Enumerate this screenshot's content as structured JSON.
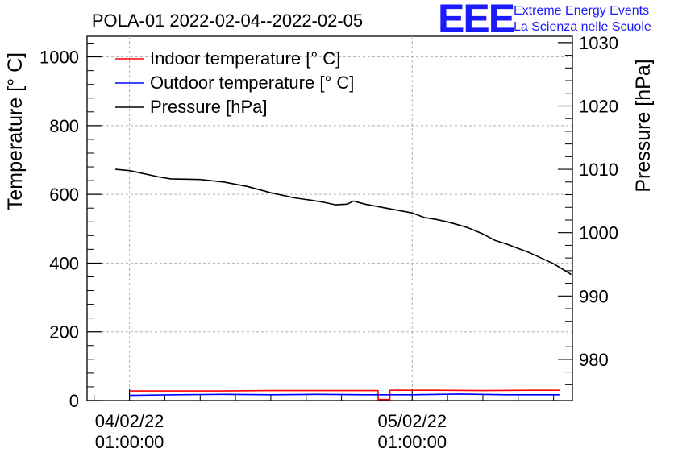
{
  "chart_data": {
    "type": "line",
    "title": "POLA-01 2022-02-04--2022-02-05",
    "ylabel_left": "Temperature [° C]",
    "ylabel_right": "Pressure [hPa]",
    "ylim_left": [
      0,
      1060
    ],
    "ylim_right": [
      973.5,
      1031
    ],
    "yticks_left": [
      0,
      200,
      400,
      600,
      800,
      1000
    ],
    "yticks_right": [
      980,
      990,
      1000,
      1010,
      1020,
      1030
    ],
    "x_hours_range": [
      -3.6,
      37.6
    ],
    "xticks": [
      {
        "hour": 0,
        "date": "04/02/22",
        "time": "01:00:00"
      },
      {
        "hour": 24,
        "date": "05/02/22",
        "time": "01:00:00"
      }
    ],
    "grid": true,
    "legend": {
      "placement": "top-left",
      "entries": [
        {
          "label": "Indoor temperature [° C]",
          "color": "#ff0000"
        },
        {
          "label": "Outdoor temperature [° C]",
          "color": "#0000ff"
        },
        {
          "label": "Pressure [hPa]",
          "color": "#000000"
        }
      ]
    },
    "series": [
      {
        "name": "Indoor temperature [° C]",
        "axis": "left",
        "color": "#ff0000",
        "x": [
          0,
          4,
          8,
          12,
          16,
          20,
          21.1,
          21.11,
          22.1,
          22.11,
          26,
          30,
          34,
          36.5
        ],
        "y": [
          28,
          28,
          28,
          29,
          29,
          29,
          29,
          3,
          3,
          30,
          30,
          29,
          30,
          30
        ]
      },
      {
        "name": "Outdoor temperature [° C]",
        "axis": "left",
        "color": "#0000ff",
        "x": [
          0,
          4,
          8,
          12,
          16,
          20,
          24,
          28,
          32,
          36.5
        ],
        "y": [
          15,
          17,
          18,
          17,
          18,
          17,
          17,
          19,
          17,
          17
        ]
      },
      {
        "name": "Pressure [hPa]",
        "axis": "right",
        "color": "#000000",
        "x": [
          -1.2,
          0,
          0.5,
          1.5,
          2.5,
          3.5,
          6,
          8,
          10,
          12,
          14,
          15.5,
          16.5,
          17.5,
          18.5,
          19,
          20,
          22,
          24,
          25,
          26,
          27,
          28,
          28.7,
          30,
          31,
          32,
          34,
          36,
          37.5
        ],
        "y": [
          1010.0,
          1009.8,
          1009.6,
          1009.2,
          1008.8,
          1008.5,
          1008.4,
          1008.0,
          1007.3,
          1006.3,
          1005.5,
          1005.1,
          1004.8,
          1004.4,
          1004.5,
          1005.0,
          1004.5,
          1003.8,
          1003.1,
          1002.4,
          1002.1,
          1001.7,
          1001.2,
          1000.8,
          999.8,
          998.8,
          998.2,
          996.8,
          995.1,
          993.4
        ]
      }
    ]
  },
  "logo": {
    "letters": "EEE",
    "line1": "Extreme Energy Events",
    "line2": "La Scienza nelle Scuole",
    "color": "#1a1aff"
  }
}
